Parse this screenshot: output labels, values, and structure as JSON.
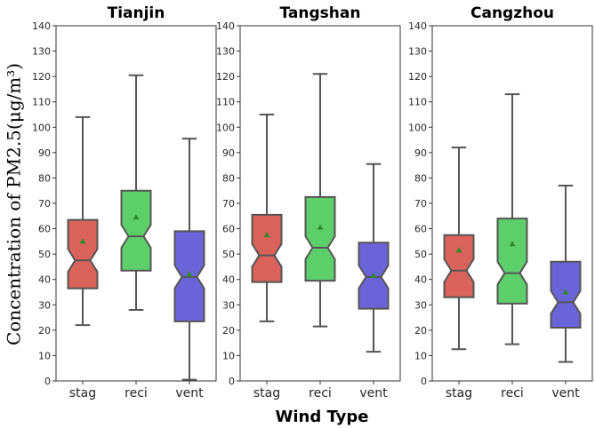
{
  "chart_data": {
    "type": "box",
    "figure": {
      "xlabel": "Wind Type",
      "ylabel": "Concentration of PM2.5(μg/m³)",
      "ylim": [
        0,
        140
      ],
      "yticks": [
        0,
        10,
        20,
        30,
        40,
        50,
        60,
        70,
        80,
        90,
        100,
        110,
        120,
        130,
        140
      ],
      "categories": [
        "stag",
        "reci",
        "vent"
      ],
      "colors": {
        "stag": "#d9625a",
        "reci": "#5dcf6a",
        "vent": "#6b64d8",
        "mean_marker": "#2e8b2e",
        "whisker": "#555555"
      },
      "notched": true,
      "grid": false,
      "legend": "none"
    },
    "panels": [
      {
        "title": "Tianjin",
        "boxes": [
          {
            "category": "stag",
            "whisker_low": 22,
            "q1": 36.5,
            "median": 47.5,
            "q3": 63.5,
            "whisker_high": 104,
            "mean": 55
          },
          {
            "category": "reci",
            "whisker_low": 28,
            "q1": 43.5,
            "median": 57,
            "q3": 75,
            "whisker_high": 120.5,
            "mean": 64.5
          },
          {
            "category": "vent",
            "whisker_low": 0.5,
            "q1": 23.5,
            "median": 41,
            "q3": 59,
            "whisker_high": 95.5,
            "mean": 42
          }
        ]
      },
      {
        "title": "Tangshan",
        "boxes": [
          {
            "category": "stag",
            "whisker_low": 23.5,
            "q1": 39,
            "median": 49.5,
            "q3": 65.5,
            "whisker_high": 105,
            "mean": 57.5
          },
          {
            "category": "reci",
            "whisker_low": 21.5,
            "q1": 39.5,
            "median": 52.5,
            "q3": 72.5,
            "whisker_high": 121,
            "mean": 60.5
          },
          {
            "category": "vent",
            "whisker_low": 11.5,
            "q1": 28.5,
            "median": 41,
            "q3": 54.5,
            "whisker_high": 85.5,
            "mean": 41.5
          }
        ]
      },
      {
        "title": "Cangzhou",
        "boxes": [
          {
            "category": "stag",
            "whisker_low": 12.5,
            "q1": 33,
            "median": 43.5,
            "q3": 57.5,
            "whisker_high": 92,
            "mean": 51.5
          },
          {
            "category": "reci",
            "whisker_low": 14.5,
            "q1": 30.5,
            "median": 42.5,
            "q3": 64,
            "whisker_high": 113,
            "mean": 54
          },
          {
            "category": "vent",
            "whisker_low": 7.5,
            "q1": 21,
            "median": 31,
            "q3": 47,
            "whisker_high": 77,
            "mean": 35
          }
        ]
      }
    ]
  }
}
